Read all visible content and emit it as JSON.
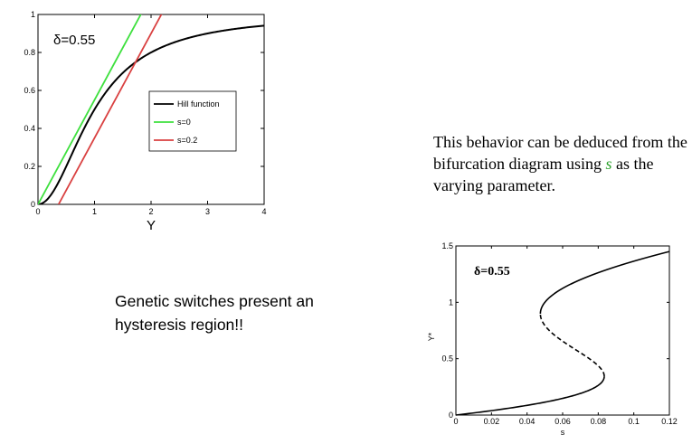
{
  "chart_data": [
    {
      "type": "line",
      "annotation": "δ=0.55",
      "xlabel": "Y",
      "ylabel": "",
      "xlim": [
        0,
        4
      ],
      "ylim": [
        0,
        1
      ],
      "xticks": [
        "0",
        "1",
        "2",
        "3",
        "4"
      ],
      "yticks": [
        "0",
        "0.2",
        "0.4",
        "0.6",
        "0.8",
        "1"
      ],
      "grid": false,
      "legend_position": "center-right",
      "series": [
        {
          "name": "Hill function",
          "color": "#000000",
          "kind": "hill",
          "n": 2,
          "K": 1
        },
        {
          "name": "s=0",
          "color": "#3ee03e",
          "kind": "linear",
          "slope": 0.55,
          "x0": 0
        },
        {
          "name": "s=0.2",
          "color": "#d94040",
          "kind": "linear",
          "slope": 0.55,
          "x0": 0.364
        }
      ]
    },
    {
      "type": "line",
      "annotation": "δ=0.55",
      "xlabel": "s",
      "ylabel": "Y*",
      "xlim": [
        0,
        0.12
      ],
      "ylim": [
        0,
        1.5
      ],
      "xticks": [
        "0",
        "0.02",
        "0.04",
        "0.06",
        "0.08",
        "0.1",
        "0.12"
      ],
      "yticks": [
        "0",
        "0.5",
        "1",
        "1.5"
      ],
      "grid": false,
      "branches": [
        {
          "style": "solid",
          "label": "lower stable"
        },
        {
          "style": "dashed",
          "label": "unstable"
        },
        {
          "style": "solid",
          "label": "upper stable"
        }
      ]
    }
  ],
  "text": {
    "bifurcation_pre": "This behavior can be deduced from the bifurcation diagram using ",
    "bifurcation_var": "s",
    "bifurcation_post": " as the varying parameter.",
    "hysteresis": "Genetic switches present an hysteresis region!!"
  }
}
